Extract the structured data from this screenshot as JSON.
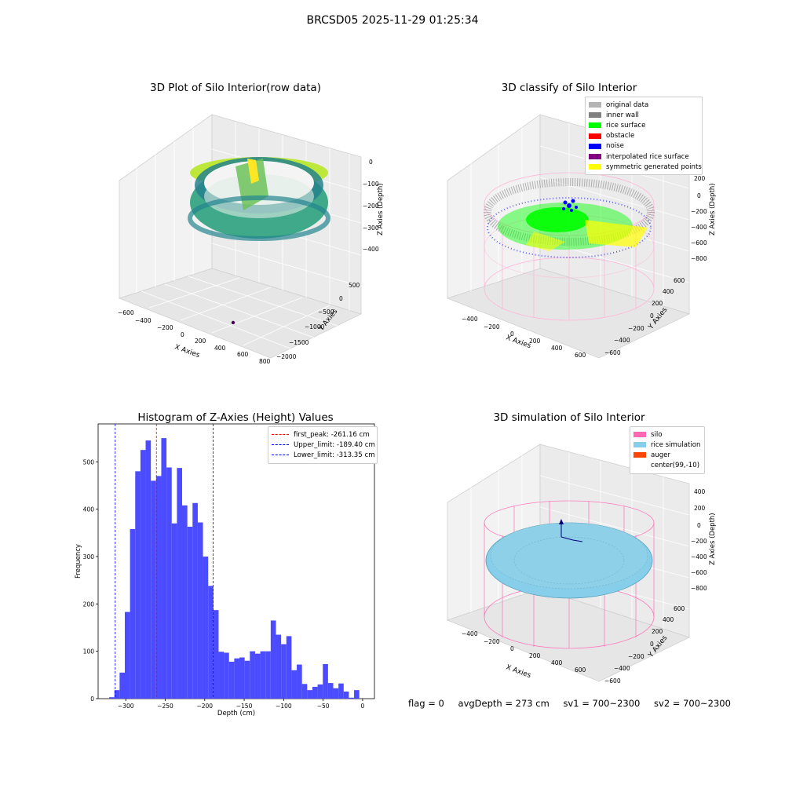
{
  "figure_title": "BRCSD05 2025-11-29 01:25:34",
  "chart_data": [
    {
      "type": "scatter",
      "title": "3D Plot of Silo Interior(row data)",
      "xlabel": "X Axies",
      "ylabel": "Y Axies",
      "zlabel": "Z Axies (Depth)",
      "x_ticks": [
        "−600",
        "−400",
        "−200",
        "0",
        "200",
        "400",
        "600",
        "800"
      ],
      "y_ticks": [
        "−2000",
        "−1500",
        "−1000",
        "−500",
        "0",
        "500"
      ],
      "z_ticks": [
        "−400",
        "−300",
        "−200",
        "−100",
        "0"
      ],
      "xlim": [
        -650,
        820
      ],
      "ylim": [
        -2000,
        650
      ],
      "zlim": [
        -440,
        20
      ],
      "colormap": "viridis",
      "description_of_points": "dense ring of depth samples around the silo wall, color by depth; single outlier near bottom"
    },
    {
      "type": "scatter",
      "title": "3D classify of Silo Interior",
      "xlabel": "X Axies",
      "ylabel": "Y Axies",
      "zlabel": "Z Axies (Depth)",
      "x_ticks": [
        "−400",
        "−200",
        "0",
        "200",
        "400",
        "600"
      ],
      "y_ticks": [
        "−600",
        "−400",
        "−200",
        "0",
        "200",
        "400",
        "600"
      ],
      "z_ticks": [
        "−800",
        "−600",
        "−400",
        "−200",
        "0",
        "200"
      ],
      "legend": [
        {
          "label": "original data",
          "color": "#b4b4b4"
        },
        {
          "label": "inner wall",
          "color": "#808080"
        },
        {
          "label": "rice surface",
          "color": "#00ff00"
        },
        {
          "label": "obstacle",
          "color": "#ff0000"
        },
        {
          "label": "noise",
          "color": "#0000ff"
        },
        {
          "label": "interpolated rice surface",
          "color": "#800080"
        },
        {
          "label": "symmetric generated points",
          "color": "#ffff00"
        }
      ]
    },
    {
      "type": "bar",
      "title": "Histogram of Z-Axies (Height) Values",
      "xlabel": "Depth (cm)",
      "ylabel": "Frequency",
      "xlim": [
        -335,
        15
      ],
      "ylim": [
        0,
        580
      ],
      "x_ticks": [
        -300,
        -250,
        -200,
        -150,
        -100,
        -50,
        0
      ],
      "y_ticks": [
        0,
        100,
        200,
        300,
        400,
        500
      ],
      "bin_start": -321,
      "bin_width": 6.6,
      "color": "#4b4bff",
      "values": [
        3,
        18,
        55,
        183,
        358,
        480,
        525,
        545,
        460,
        470,
        550,
        488,
        370,
        487,
        408,
        363,
        413,
        372,
        300,
        238,
        187,
        99,
        97,
        78,
        85,
        87,
        80,
        100,
        95,
        100,
        100,
        165,
        135,
        115,
        132,
        60,
        72,
        31,
        18,
        25,
        30,
        73,
        33,
        22,
        32,
        15,
        2,
        18
      ],
      "lines": [
        {
          "label": "first_peak: -261.16 cm",
          "x": -261.16,
          "color": "#ff0000"
        },
        {
          "label": "Upper_limit: -189.40 cm",
          "x": -189.4,
          "color": "#0000ff"
        },
        {
          "label": "Lower_limit: -313.35 cm",
          "x": -313.35,
          "color": "#0000ff"
        }
      ]
    },
    {
      "type": "scatter",
      "title": "3D simulation of Silo Interior",
      "xlabel": "X Axies",
      "ylabel": "Y Axies",
      "zlabel": "Z Axies (Depth)",
      "x_ticks": [
        "−400",
        "−200",
        "0",
        "200",
        "400",
        "600"
      ],
      "y_ticks": [
        "−600",
        "−400",
        "−200",
        "0",
        "200",
        "400",
        "600"
      ],
      "z_ticks": [
        "−800",
        "−600",
        "−400",
        "−200",
        "0",
        "200",
        "400"
      ],
      "legend": [
        {
          "label": "silo",
          "color": "#ff69b4"
        },
        {
          "label": "rice simulation",
          "color": "#87ceeb"
        },
        {
          "label": "auger",
          "color": "#ff4500"
        },
        {
          "label": "center(99,-10)",
          "color": ""
        }
      ]
    }
  ],
  "status": {
    "flag": "flag = 0",
    "avg_depth": "avgDepth = 273 cm",
    "sv1": "sv1 = 700~2300",
    "sv2": "sv2 = 700~2300"
  }
}
